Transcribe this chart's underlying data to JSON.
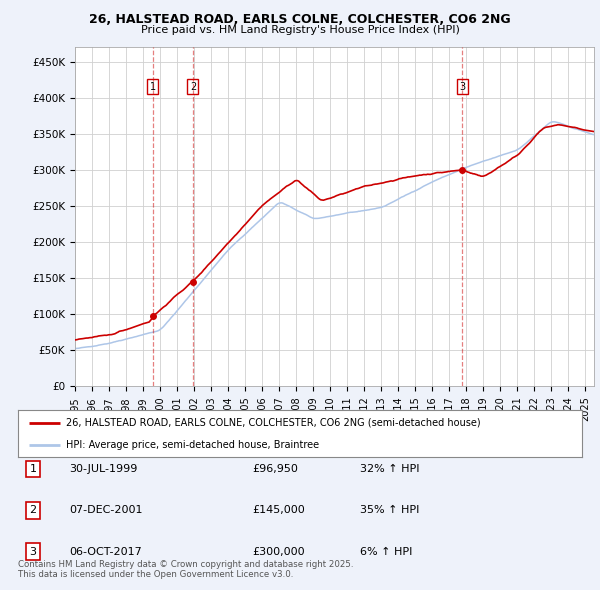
{
  "title1": "26, HALSTEAD ROAD, EARLS COLNE, COLCHESTER, CO6 2NG",
  "title2": "Price paid vs. HM Land Registry's House Price Index (HPI)",
  "ylabel_ticks": [
    "£0",
    "£50K",
    "£100K",
    "£150K",
    "£200K",
    "£250K",
    "£300K",
    "£350K",
    "£400K",
    "£450K"
  ],
  "ytick_vals": [
    0,
    50000,
    100000,
    150000,
    200000,
    250000,
    300000,
    350000,
    400000,
    450000
  ],
  "ylim": [
    0,
    470000
  ],
  "xlim_start": 1995.0,
  "xlim_end": 2025.5,
  "sale_dates": [
    1999.58,
    2001.93,
    2017.77
  ],
  "sale_prices": [
    96950,
    145000,
    300000
  ],
  "sale_labels": [
    "1",
    "2",
    "3"
  ],
  "hpi_color": "#aec6e8",
  "price_color": "#cc0000",
  "sale_vline_color": "#cc0000",
  "sale_vline_alpha": 0.5,
  "legend_label_price": "26, HALSTEAD ROAD, EARLS COLNE, COLCHESTER, CO6 2NG (semi-detached house)",
  "legend_label_hpi": "HPI: Average price, semi-detached house, Braintree",
  "table_data": [
    [
      "1",
      "30-JUL-1999",
      "£96,950",
      "32% ↑ HPI"
    ],
    [
      "2",
      "07-DEC-2001",
      "£145,000",
      "35% ↑ HPI"
    ],
    [
      "3",
      "06-OCT-2017",
      "£300,000",
      "6% ↑ HPI"
    ]
  ],
  "footnote": "Contains HM Land Registry data © Crown copyright and database right 2025.\nThis data is licensed under the Open Government Licence v3.0.",
  "background_color": "#eef2fa",
  "plot_bg_color": "#ffffff",
  "grid_color": "#d0d0d0"
}
